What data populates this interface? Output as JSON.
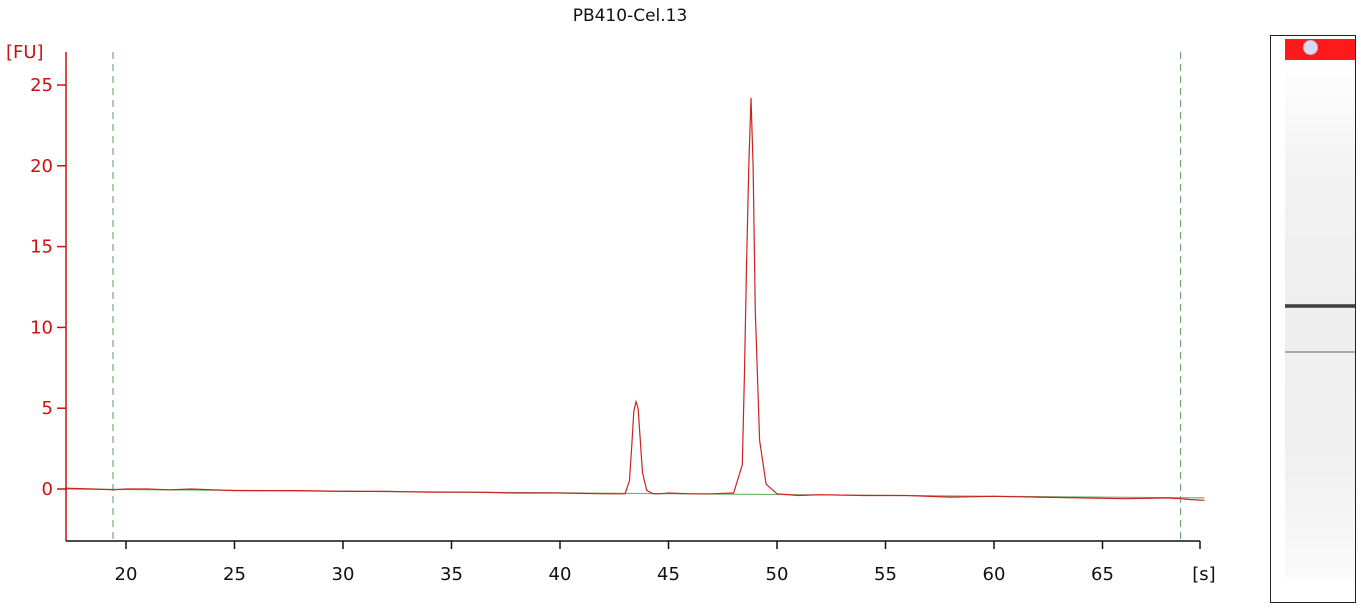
{
  "chart_data": {
    "type": "line",
    "title": "PB410-Cel.13",
    "ylabel": "[FU]",
    "xlabel": "[s]",
    "xlim": [
      17.2,
      69.7
    ],
    "ylim": [
      -3.2,
      26.2
    ],
    "xticks": [
      20,
      25,
      30,
      35,
      40,
      45,
      50,
      55,
      60,
      65
    ],
    "yticks": [
      0,
      5,
      10,
      15,
      20,
      25
    ],
    "markers_x": [
      19.4,
      68.6
    ],
    "series": [
      {
        "color": "#cc2222",
        "x": [
          17.2,
          18.5,
          19.4,
          20.0,
          21.0,
          22.0,
          23.0,
          24.0,
          25.0,
          26.0,
          28.0,
          30.0,
          32.0,
          34.0,
          36.0,
          38.0,
          40.0,
          42.0,
          43.0,
          43.2,
          43.3,
          43.4,
          43.5,
          43.6,
          43.7,
          43.8,
          44.0,
          44.3,
          44.6,
          45.0,
          46.0,
          47.0,
          48.0,
          48.4,
          48.5,
          48.6,
          48.7,
          48.8,
          48.9,
          49.0,
          49.2,
          49.5,
          50.0,
          51.0,
          52.0,
          54.0,
          56.0,
          58.0,
          60.0,
          62.0,
          64.0,
          66.0,
          68.0,
          68.6,
          69.0,
          69.7
        ],
        "y": [
          0.05,
          0.0,
          -0.05,
          0.0,
          0.0,
          -0.05,
          0.0,
          -0.05,
          -0.1,
          -0.1,
          -0.1,
          -0.15,
          -0.15,
          -0.2,
          -0.2,
          -0.25,
          -0.25,
          -0.3,
          -0.3,
          0.5,
          2.5,
          4.8,
          5.4,
          5.0,
          3.0,
          1.0,
          -0.1,
          -0.3,
          -0.3,
          -0.25,
          -0.3,
          -0.3,
          -0.25,
          1.5,
          7.0,
          14.0,
          20.0,
          24.2,
          20.0,
          11.0,
          3.0,
          0.3,
          -0.3,
          -0.4,
          -0.35,
          -0.4,
          -0.4,
          -0.5,
          -0.45,
          -0.5,
          -0.55,
          -0.6,
          -0.55,
          -0.6,
          -0.65,
          -0.7
        ]
      },
      {
        "color": "#6fb36f",
        "x": [
          17.2,
          69.7
        ],
        "y": [
          0.0,
          -0.55
        ]
      }
    ],
    "grid": false,
    "legend": "none"
  },
  "gel": {
    "top_color": "#ff1a1a",
    "band_color": "#333333"
  }
}
